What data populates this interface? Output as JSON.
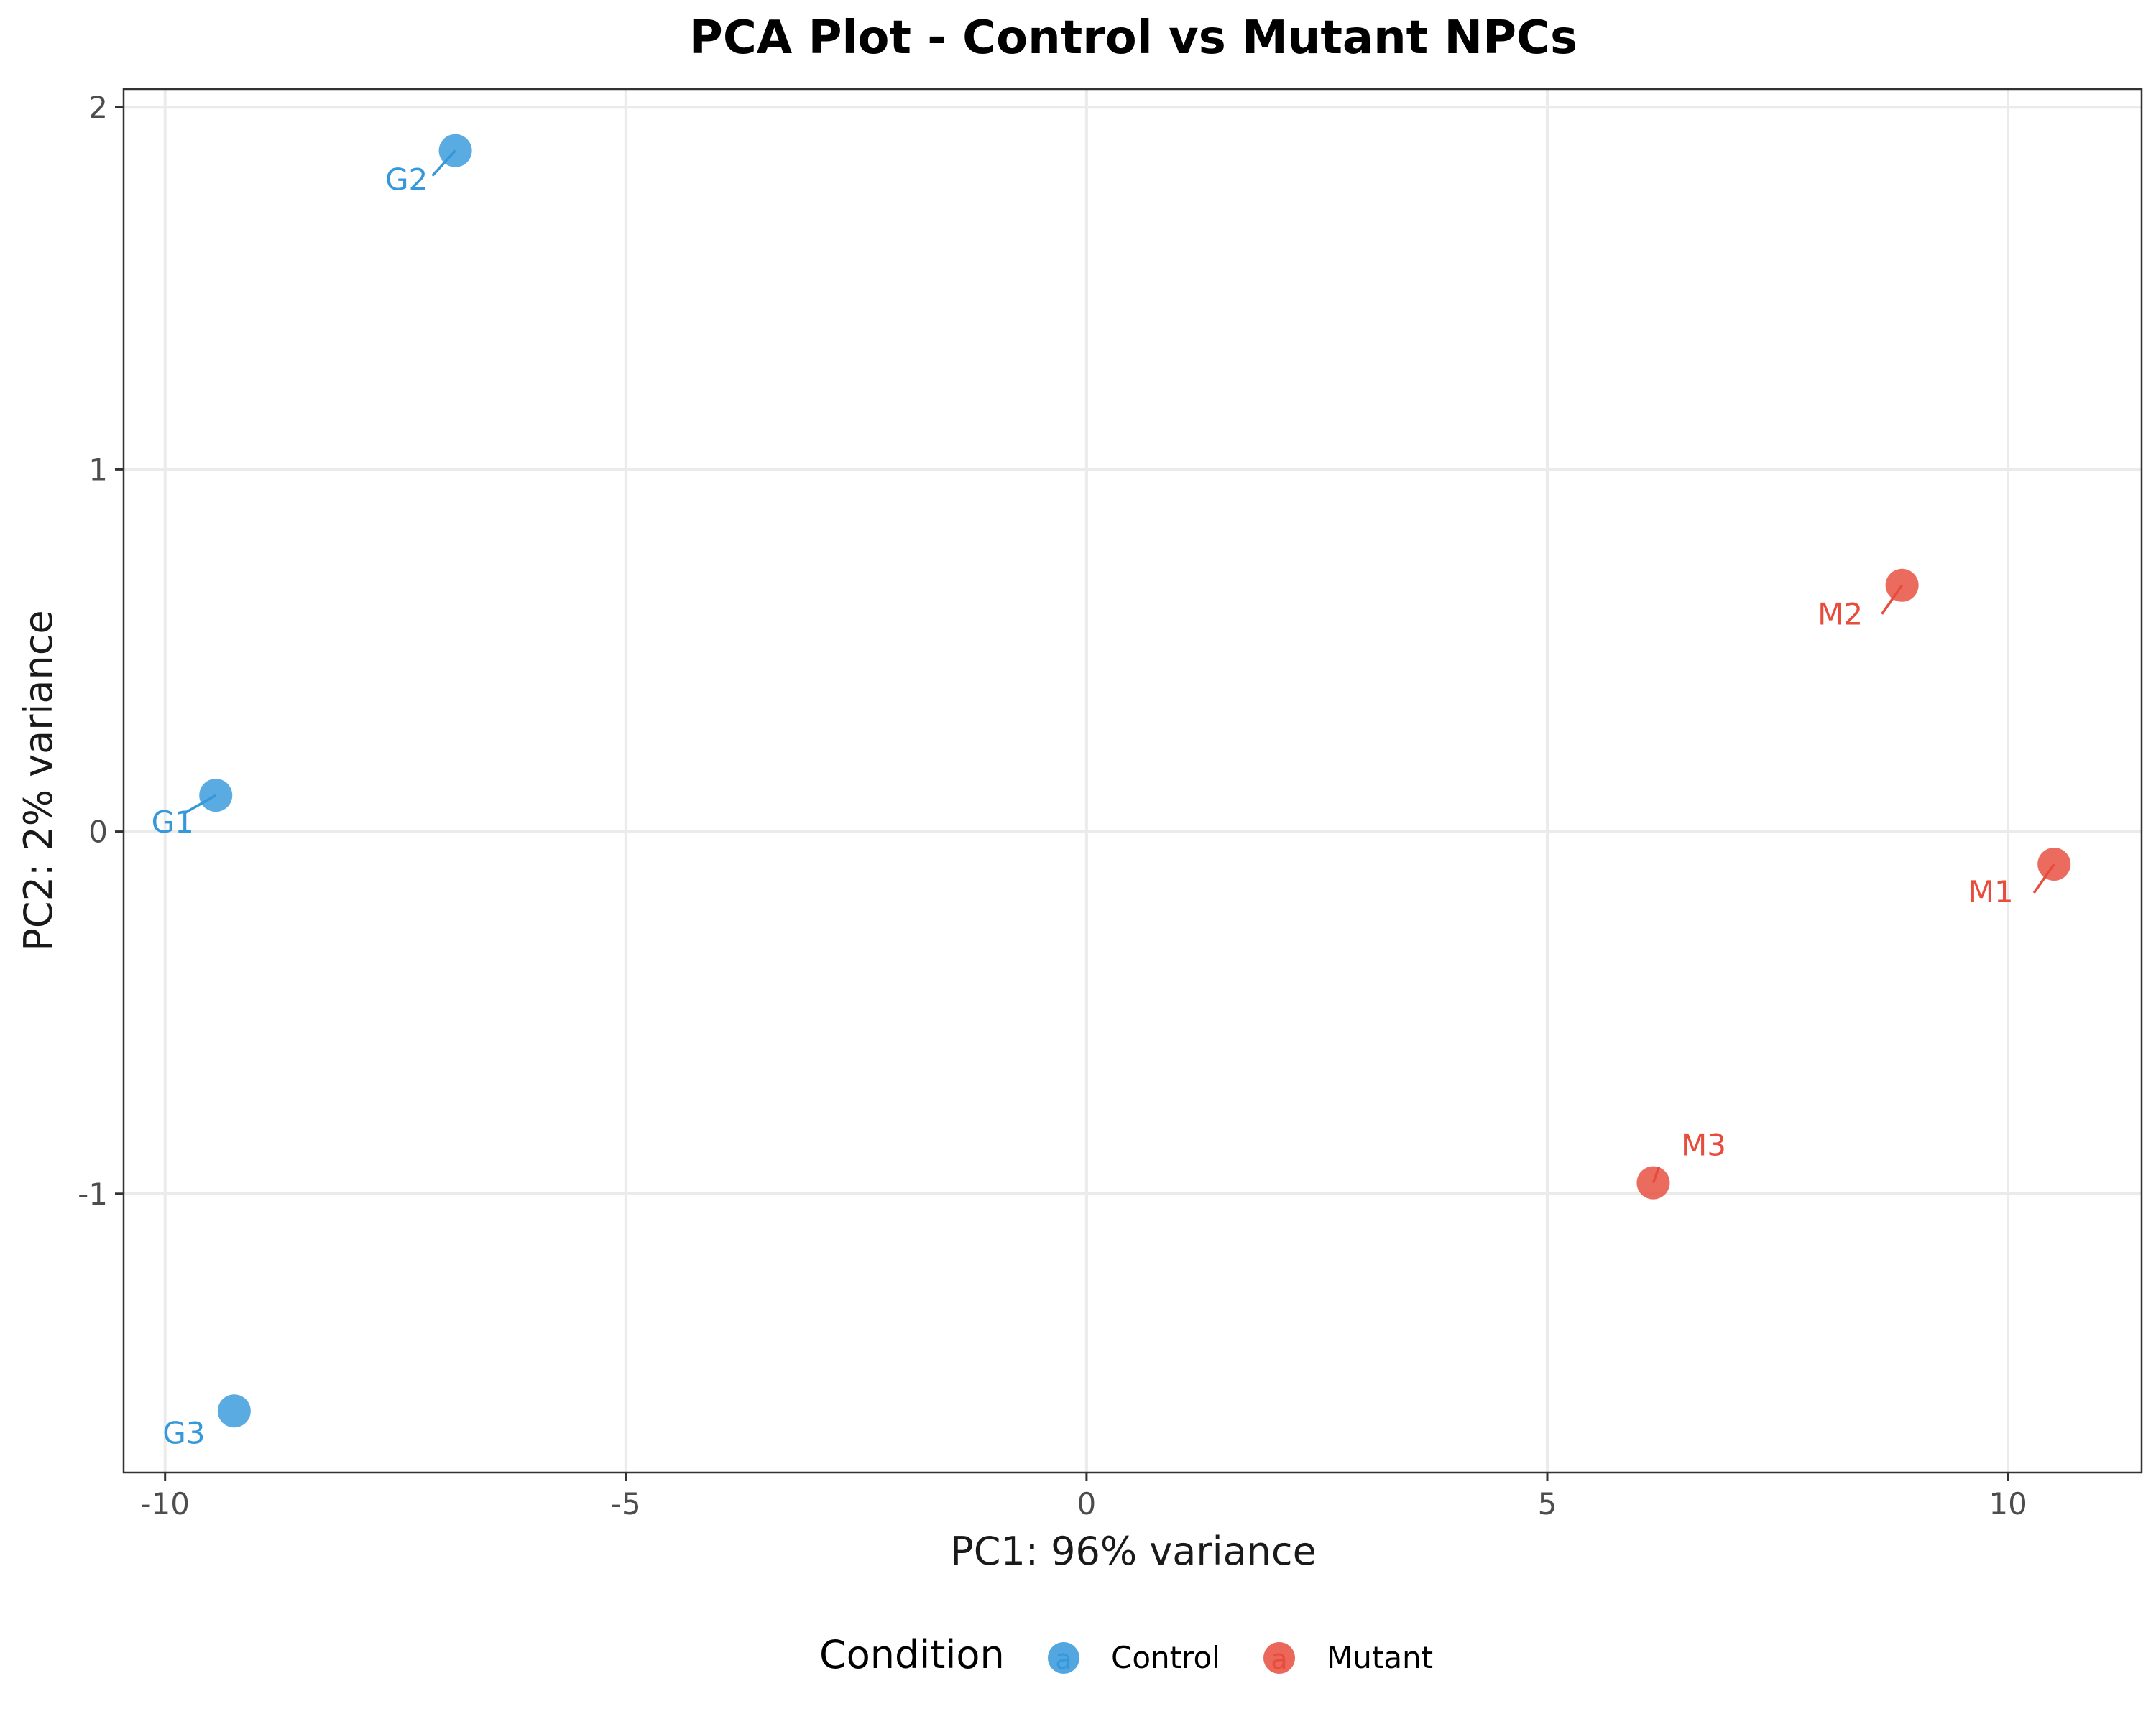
{
  "chart_data": {
    "type": "scatter",
    "title": "PCA Plot - Control vs Mutant NPCs",
    "xlabel": "PC1: 96% variance",
    "ylabel": "PC2: 2% variance",
    "xlim": [
      -10.45,
      11.45
    ],
    "ylim": [
      -1.77,
      2.05
    ],
    "xticks": [
      -10,
      -5,
      0,
      5,
      10
    ],
    "xtick_labels": [
      "-10",
      "-5",
      "0",
      "5",
      "10"
    ],
    "yticks": [
      -1,
      0,
      1,
      2
    ],
    "ytick_labels": [
      "-1",
      "0",
      "1",
      "2"
    ],
    "grid": true,
    "legend": {
      "title": "Condition",
      "position": "bottom",
      "entries": [
        {
          "label": "Control",
          "color": "#3498DB",
          "key_glyph": "a"
        },
        {
          "label": "Mutant",
          "color": "#E74C3C",
          "key_glyph": "a"
        }
      ]
    },
    "series": [
      {
        "name": "Control",
        "color": "#3498DB",
        "points": [
          {
            "label": "G1",
            "x": -9.45,
            "y": 0.1
          },
          {
            "label": "G2",
            "x": -6.85,
            "y": 1.88
          },
          {
            "label": "G3",
            "x": -9.25,
            "y": -1.6
          }
        ]
      },
      {
        "name": "Mutant",
        "color": "#E74C3C",
        "points": [
          {
            "label": "M1",
            "x": 10.5,
            "y": -0.09
          },
          {
            "label": "M2",
            "x": 8.85,
            "y": 0.68
          },
          {
            "label": "M3",
            "x": 6.15,
            "y": -0.97
          }
        ]
      }
    ]
  }
}
